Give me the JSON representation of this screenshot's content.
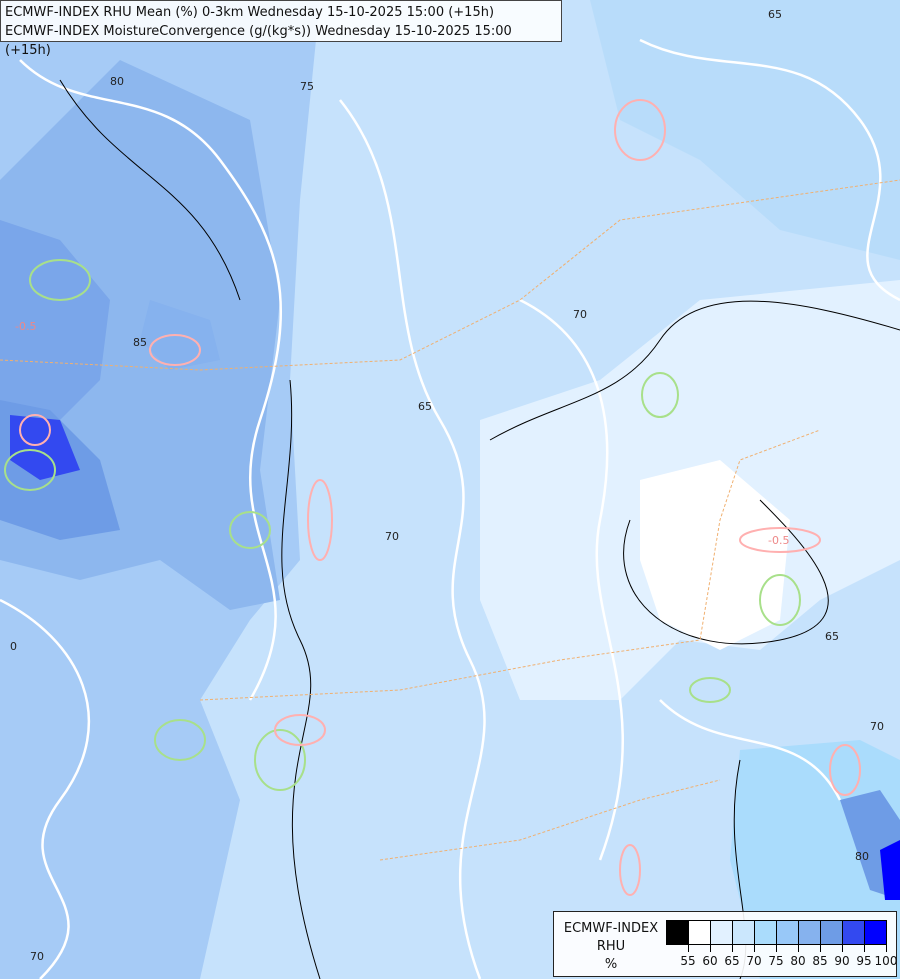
{
  "title_lines": [
    "ECMWF-INDEX RHU Mean (%) 0-3km Wednesday 15-10-2025 15:00 (+15h)",
    "ECMWF-INDEX MoistureConvergence (g/(kg*s)) Wednesday 15-10-2025 15:00 (+15h)"
  ],
  "legend": {
    "title": "ECMWF-INDEX",
    "variable": "RHU",
    "unit": "%",
    "colors": [
      "#000000",
      "#ffffff",
      "#e2f1ff",
      "#cbe7fd",
      "#aadcfc",
      "#98c8f8",
      "#86b2ee",
      "#6e9ce6",
      "#3349f0",
      "#0000ff"
    ],
    "ticks": [
      "55",
      "60",
      "65",
      "70",
      "75",
      "80",
      "85",
      "90",
      "95",
      "100"
    ]
  },
  "contour_labels": [
    "65",
    "70",
    "75",
    "80",
    "85",
    "-0.5",
    "0",
    "65",
    "70",
    "-0.5",
    "65",
    "70",
    "80",
    "70"
  ],
  "colors": {
    "rhu_contour": "#000000",
    "rh_white_contour": "#ffffff",
    "convergence_positive": "#a8e08a",
    "convergence_negative": "#ffb0b0",
    "borders": "#f0b070"
  }
}
